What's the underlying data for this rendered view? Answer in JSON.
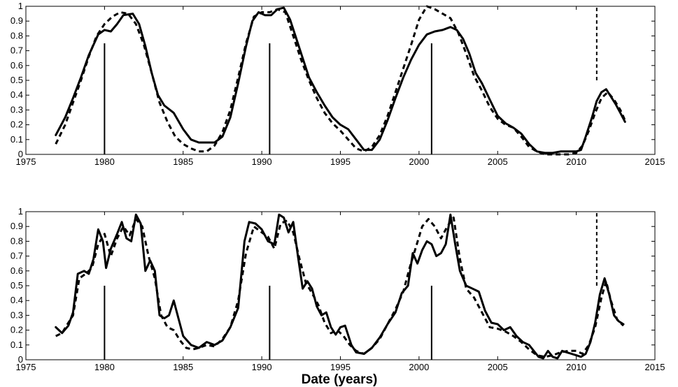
{
  "chart_data": [
    {
      "type": "line",
      "xlim": [
        1975,
        2015
      ],
      "ylim": [
        0,
        1
      ],
      "xticks": [
        1975,
        1980,
        1985,
        1990,
        1995,
        2000,
        2005,
        2010,
        2015
      ],
      "yticks": [
        0,
        0.1,
        0.2,
        0.3,
        0.4,
        0.5,
        0.6,
        0.7,
        0.8,
        0.9,
        1
      ],
      "ytick_labels": [
        "0",
        "0.1",
        "0.2",
        "0.3",
        "0.4",
        "0.5",
        "0.6",
        "0.7",
        "0.8",
        "0.9",
        "1"
      ],
      "xlabel": "",
      "grid": false,
      "series": [
        {
          "style": "solid",
          "x": [
            1976.9,
            1977.5,
            1978.0,
            1978.5,
            1979.0,
            1979.6,
            1980.0,
            1980.4,
            1980.8,
            1981.2,
            1981.8,
            1982.2,
            1982.6,
            1983.0,
            1983.4,
            1983.8,
            1984.4,
            1985.0,
            1985.5,
            1986.0,
            1986.5,
            1987.0,
            1987.5,
            1988.0,
            1988.5,
            1989.0,
            1989.4,
            1989.8,
            1990.2,
            1990.6,
            1991.0,
            1991.4,
            1991.8,
            1992.2,
            1992.6,
            1993.0,
            1993.5,
            1994.0,
            1994.5,
            1995.0,
            1995.5,
            1996.0,
            1996.5,
            1997.0,
            1997.5,
            1998.0,
            1998.5,
            1999.0,
            1999.5,
            2000.0,
            2000.5,
            2001.0,
            2001.5,
            2002.0,
            2002.4,
            2002.8,
            2003.2,
            2003.6,
            2004.0,
            2004.5,
            2005.0,
            2005.5,
            2006.0,
            2006.5,
            2007.0,
            2007.5,
            2008.0,
            2008.5,
            2009.0,
            2009.5,
            2010.0,
            2010.3,
            2010.6,
            2011.0,
            2011.3,
            2011.6,
            2011.9,
            2012.2,
            2012.5,
            2012.8,
            2013.1
          ],
          "y": [
            0.13,
            0.25,
            0.38,
            0.52,
            0.67,
            0.81,
            0.84,
            0.83,
            0.88,
            0.94,
            0.95,
            0.88,
            0.73,
            0.55,
            0.4,
            0.33,
            0.28,
            0.17,
            0.1,
            0.08,
            0.08,
            0.08,
            0.12,
            0.25,
            0.48,
            0.73,
            0.9,
            0.96,
            0.94,
            0.94,
            0.98,
            0.99,
            0.91,
            0.78,
            0.65,
            0.52,
            0.42,
            0.33,
            0.25,
            0.2,
            0.17,
            0.1,
            0.03,
            0.03,
            0.1,
            0.23,
            0.38,
            0.52,
            0.64,
            0.74,
            0.81,
            0.83,
            0.84,
            0.86,
            0.84,
            0.78,
            0.68,
            0.55,
            0.48,
            0.37,
            0.26,
            0.21,
            0.18,
            0.14,
            0.07,
            0.02,
            0.01,
            0.01,
            0.02,
            0.02,
            0.02,
            0.03,
            0.12,
            0.25,
            0.36,
            0.42,
            0.44,
            0.39,
            0.34,
            0.28,
            0.22
          ]
        },
        {
          "style": "dashed",
          "x": [
            1976.9,
            1977.5,
            1978.0,
            1978.5,
            1979.0,
            1979.5,
            1980.0,
            1980.5,
            1981.0,
            1981.5,
            1982.0,
            1982.5,
            1983.0,
            1983.5,
            1984.0,
            1984.5,
            1985.0,
            1985.5,
            1986.0,
            1986.5,
            1987.0,
            1987.5,
            1988.0,
            1988.5,
            1989.0,
            1989.5,
            1990.0,
            1990.5,
            1991.0,
            1991.5,
            1992.0,
            1992.5,
            1993.0,
            1993.5,
            1994.0,
            1994.5,
            1995.0,
            1995.5,
            1996.0,
            1996.5,
            1997.0,
            1997.5,
            1998.0,
            1998.5,
            1999.0,
            1999.5,
            2000.0,
            2000.5,
            2001.0,
            2001.5,
            2002.0,
            2002.5,
            2003.0,
            2003.5,
            2004.0,
            2004.5,
            2005.0,
            2005.5,
            2006.0,
            2006.5,
            2007.0,
            2007.5,
            2008.0,
            2008.5,
            2009.0,
            2009.5,
            2010.0,
            2010.4,
            2010.8,
            2011.2,
            2011.6,
            2012.0,
            2012.4,
            2012.8,
            2013.1
          ],
          "y": [
            0.07,
            0.2,
            0.35,
            0.5,
            0.66,
            0.8,
            0.88,
            0.93,
            0.96,
            0.95,
            0.88,
            0.74,
            0.55,
            0.35,
            0.22,
            0.12,
            0.07,
            0.04,
            0.02,
            0.02,
            0.06,
            0.15,
            0.3,
            0.52,
            0.75,
            0.93,
            0.96,
            0.96,
            0.98,
            0.96,
            0.8,
            0.64,
            0.5,
            0.38,
            0.28,
            0.21,
            0.16,
            0.1,
            0.04,
            0.02,
            0.05,
            0.13,
            0.26,
            0.42,
            0.58,
            0.74,
            0.91,
            1.0,
            0.98,
            0.95,
            0.92,
            0.82,
            0.68,
            0.53,
            0.43,
            0.32,
            0.24,
            0.2,
            0.18,
            0.12,
            0.05,
            0.02,
            0.0,
            0.0,
            0.0,
            0.0,
            0.01,
            0.06,
            0.16,
            0.28,
            0.38,
            0.42,
            0.37,
            0.3,
            0.23
          ]
        }
      ],
      "vlines": [
        {
          "x": 1980.0,
          "y0": 0,
          "y1": 0.75,
          "style": "solid"
        },
        {
          "x": 1990.5,
          "y0": 0,
          "y1": 0.75,
          "style": "solid"
        },
        {
          "x": 2000.8,
          "y0": 0,
          "y1": 0.75,
          "style": "solid"
        },
        {
          "x": 2011.3,
          "y0": 0.5,
          "y1": 1.0,
          "style": "dashed"
        }
      ]
    },
    {
      "type": "line",
      "xlim": [
        1975,
        2015
      ],
      "ylim": [
        0,
        1
      ],
      "xticks": [
        1975,
        1980,
        1985,
        1990,
        1995,
        2000,
        2005,
        2010,
        2015
      ],
      "yticks": [
        0,
        0.1,
        0.2,
        0.3,
        0.4,
        0.5,
        0.6,
        0.7,
        0.8,
        0.9,
        1
      ],
      "ytick_labels": [
        "0",
        "0.1",
        "0.2",
        "0.3",
        "0.4",
        "0.5",
        "0.6",
        "0.7",
        "0.8",
        "0.9",
        "1"
      ],
      "xlabel": "Date (years)",
      "grid": false,
      "series": [
        {
          "style": "solid",
          "x": [
            1976.9,
            1977.3,
            1977.7,
            1978.0,
            1978.3,
            1978.7,
            1979.0,
            1979.3,
            1979.6,
            1979.9,
            1980.1,
            1980.4,
            1980.8,
            1981.1,
            1981.4,
            1981.7,
            1982.0,
            1982.3,
            1982.6,
            1982.9,
            1983.2,
            1983.5,
            1983.8,
            1984.1,
            1984.4,
            1984.7,
            1985.0,
            1985.5,
            1986.0,
            1986.5,
            1987.0,
            1987.5,
            1988.0,
            1988.5,
            1988.9,
            1989.2,
            1989.6,
            1990.0,
            1990.4,
            1990.8,
            1991.1,
            1991.4,
            1991.7,
            1992.0,
            1992.3,
            1992.6,
            1992.9,
            1993.2,
            1993.5,
            1993.8,
            1994.1,
            1994.4,
            1994.7,
            1995.0,
            1995.3,
            1995.7,
            1996.0,
            1996.5,
            1997.0,
            1997.5,
            1998.0,
            1998.5,
            1998.9,
            1999.3,
            1999.6,
            1999.9,
            2000.2,
            2000.5,
            2000.8,
            2001.1,
            2001.4,
            2001.7,
            2002.0,
            2002.3,
            2002.6,
            2003.0,
            2003.4,
            2003.8,
            2004.2,
            2004.6,
            2005.0,
            2005.4,
            2005.8,
            2006.2,
            2006.6,
            2007.0,
            2007.3,
            2007.6,
            2007.9,
            2008.2,
            2008.5,
            2008.8,
            2009.1,
            2009.4,
            2009.7,
            2010.0,
            2010.3,
            2010.6,
            2010.9,
            2011.2,
            2011.5,
            2011.8,
            2012.1,
            2012.4,
            2012.7,
            2013.0
          ],
          "y": [
            0.22,
            0.18,
            0.23,
            0.32,
            0.58,
            0.6,
            0.58,
            0.68,
            0.88,
            0.8,
            0.62,
            0.75,
            0.85,
            0.93,
            0.82,
            0.8,
            0.98,
            0.92,
            0.6,
            0.67,
            0.6,
            0.3,
            0.28,
            0.3,
            0.4,
            0.28,
            0.16,
            0.1,
            0.08,
            0.12,
            0.1,
            0.13,
            0.22,
            0.35,
            0.8,
            0.93,
            0.92,
            0.88,
            0.8,
            0.78,
            0.98,
            0.96,
            0.86,
            0.93,
            0.7,
            0.48,
            0.53,
            0.48,
            0.36,
            0.3,
            0.32,
            0.22,
            0.17,
            0.22,
            0.23,
            0.1,
            0.05,
            0.04,
            0.08,
            0.15,
            0.24,
            0.32,
            0.45,
            0.5,
            0.72,
            0.65,
            0.74,
            0.8,
            0.78,
            0.7,
            0.72,
            0.78,
            0.98,
            0.78,
            0.6,
            0.5,
            0.48,
            0.46,
            0.33,
            0.25,
            0.24,
            0.2,
            0.22,
            0.16,
            0.12,
            0.1,
            0.06,
            0.02,
            0.01,
            0.06,
            0.02,
            0.01,
            0.06,
            0.05,
            0.04,
            0.03,
            0.02,
            0.04,
            0.12,
            0.25,
            0.44,
            0.55,
            0.44,
            0.3,
            0.26,
            0.24
          ]
        },
        {
          "style": "dashed",
          "x": [
            1976.9,
            1977.3,
            1977.7,
            1978.0,
            1978.4,
            1978.8,
            1979.2,
            1979.6,
            1980.0,
            1980.4,
            1980.8,
            1981.2,
            1981.6,
            1982.0,
            1982.4,
            1982.8,
            1983.2,
            1983.6,
            1984.0,
            1984.4,
            1984.8,
            1985.2,
            1985.6,
            1986.0,
            1986.5,
            1987.0,
            1987.5,
            1988.0,
            1988.5,
            1989.0,
            1989.5,
            1990.0,
            1990.4,
            1990.8,
            1991.2,
            1991.6,
            1992.0,
            1992.4,
            1992.8,
            1993.2,
            1993.6,
            1994.0,
            1994.4,
            1994.8,
            1995.2,
            1995.6,
            1996.0,
            1996.5,
            1997.0,
            1997.5,
            1998.0,
            1998.5,
            1999.0,
            1999.4,
            1999.8,
            2000.2,
            2000.6,
            2001.0,
            2001.4,
            2001.8,
            2002.2,
            2002.6,
            2003.0,
            2003.5,
            2004.0,
            2004.5,
            2005.0,
            2005.5,
            2006.0,
            2006.5,
            2007.0,
            2007.5,
            2008.0,
            2008.5,
            2009.0,
            2009.5,
            2010.0,
            2010.4,
            2010.8,
            2011.2,
            2011.6,
            2011.9,
            2012.2,
            2012.6,
            2013.0
          ],
          "y": [
            0.16,
            0.18,
            0.25,
            0.3,
            0.55,
            0.58,
            0.62,
            0.78,
            0.85,
            0.7,
            0.82,
            0.9,
            0.84,
            0.95,
            0.9,
            0.7,
            0.55,
            0.3,
            0.22,
            0.2,
            0.13,
            0.08,
            0.07,
            0.08,
            0.1,
            0.09,
            0.14,
            0.22,
            0.4,
            0.72,
            0.9,
            0.86,
            0.83,
            0.75,
            0.92,
            0.94,
            0.86,
            0.68,
            0.52,
            0.45,
            0.37,
            0.25,
            0.18,
            0.2,
            0.16,
            0.1,
            0.06,
            0.04,
            0.08,
            0.14,
            0.24,
            0.34,
            0.46,
            0.62,
            0.76,
            0.9,
            0.95,
            0.9,
            0.82,
            0.9,
            0.96,
            0.68,
            0.48,
            0.42,
            0.32,
            0.22,
            0.21,
            0.19,
            0.16,
            0.12,
            0.07,
            0.03,
            0.02,
            0.03,
            0.05,
            0.06,
            0.06,
            0.04,
            0.1,
            0.22,
            0.42,
            0.53,
            0.4,
            0.27,
            0.23
          ]
        }
      ],
      "vlines": [
        {
          "x": 1980.0,
          "y0": 0,
          "y1": 0.5,
          "style": "solid"
        },
        {
          "x": 1990.5,
          "y0": 0,
          "y1": 0.5,
          "style": "solid"
        },
        {
          "x": 2000.8,
          "y0": 0,
          "y1": 0.5,
          "style": "solid"
        },
        {
          "x": 2011.3,
          "y0": 0.5,
          "y1": 1.0,
          "style": "dashed"
        }
      ]
    }
  ]
}
